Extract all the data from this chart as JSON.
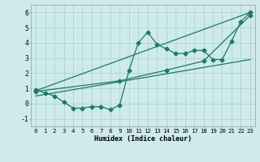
{
  "background_color": "#ceeaea",
  "grid_color": "#aed4d4",
  "line_color": "#1a7a6a",
  "xlabel": "Humidex (Indice chaleur)",
  "xlim": [
    -0.5,
    23.5
  ],
  "ylim": [
    -1.5,
    6.5
  ],
  "xticks": [
    0,
    1,
    2,
    3,
    4,
    5,
    6,
    7,
    8,
    9,
    10,
    11,
    12,
    13,
    14,
    15,
    16,
    17,
    18,
    19,
    20,
    21,
    22,
    23
  ],
  "yticks": [
    -1,
    0,
    1,
    2,
    3,
    4,
    5,
    6
  ],
  "series1_x": [
    0,
    1,
    2,
    3,
    4,
    5,
    6,
    7,
    8,
    9,
    10,
    11,
    12,
    13,
    14,
    15,
    16,
    17,
    18,
    19,
    20,
    21,
    22,
    23
  ],
  "series1_y": [
    0.9,
    0.7,
    0.5,
    0.1,
    -0.3,
    -0.3,
    -0.2,
    -0.2,
    -0.4,
    -0.1,
    2.2,
    4.0,
    4.7,
    3.9,
    3.6,
    3.3,
    3.3,
    3.5,
    3.5,
    2.9,
    2.9,
    4.1,
    5.4,
    6.0
  ],
  "series2_x": [
    0,
    23
  ],
  "series2_y": [
    0.85,
    6.0
  ],
  "series3_x": [
    0,
    23
  ],
  "series3_y": [
    0.5,
    2.9
  ],
  "series4_x": [
    0,
    9,
    14,
    18,
    23
  ],
  "series4_y": [
    0.8,
    1.5,
    2.2,
    2.8,
    5.8
  ],
  "marker": "D",
  "markersize": 2.5,
  "linewidth": 0.9,
  "xlabel_fontsize": 6.0,
  "tick_fontsize": 5.2
}
